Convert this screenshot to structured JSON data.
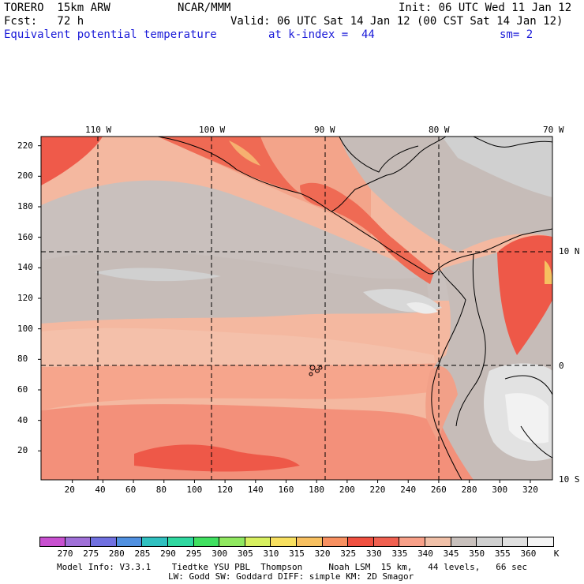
{
  "header": {
    "model": "TORERO  15km ARW",
    "center": "NCAR/MMM",
    "init": "Init: 06 UTC Wed 11 Jan 12",
    "fcst": "Fcst:   72 h",
    "valid": "Valid: 06 UTC Sat 14 Jan 12 (00 CST Sat 14 Jan 12)",
    "field": "Equivalent potential temperature",
    "level": "at k-index =  44",
    "smooth": "sm= 2"
  },
  "map": {
    "top_lon_labels": [
      "110 W",
      "100 W",
      "90 W",
      "80 W",
      "70 W"
    ],
    "right_lat_labels": [
      "10 N",
      "0",
      "10 S"
    ],
    "left_ticks": [
      "220",
      "200",
      "180",
      "160",
      "140",
      "120",
      "100",
      "80",
      "60",
      "40",
      "20"
    ],
    "bottom_ticks": [
      "20",
      "40",
      "60",
      "80",
      "100",
      "120",
      "140",
      "160",
      "180",
      "200",
      "220",
      "240",
      "260",
      "280",
      "300",
      "320"
    ]
  },
  "colorbar": {
    "labels": [
      "270",
      "275",
      "280",
      "285",
      "290",
      "295",
      "300",
      "305",
      "310",
      "315",
      "320",
      "325",
      "330",
      "335",
      "340",
      "345",
      "350",
      "355",
      "360"
    ],
    "unit": "K",
    "colors": [
      "#c850d0",
      "#a070d8",
      "#7070e0",
      "#5090e0",
      "#30c0c0",
      "#30d8a0",
      "#40e060",
      "#90e860",
      "#d8f060",
      "#f8e060",
      "#f8c060",
      "#f89060",
      "#f05040",
      "#f06050",
      "#f8a088",
      "#f0c0a8",
      "#c8c0bc",
      "#d0d0d0",
      "#e0e0e0",
      "#f4f4f4"
    ]
  },
  "footer": {
    "line1": "Model Info: V3.3.1    Tiedtke YSU PBL  Thompson     Noah LSM  15 km,   44 levels,   66 sec",
    "line2": "LW: Godd SW: Goddard DIFF: simple KM: 2D Smagor"
  }
}
